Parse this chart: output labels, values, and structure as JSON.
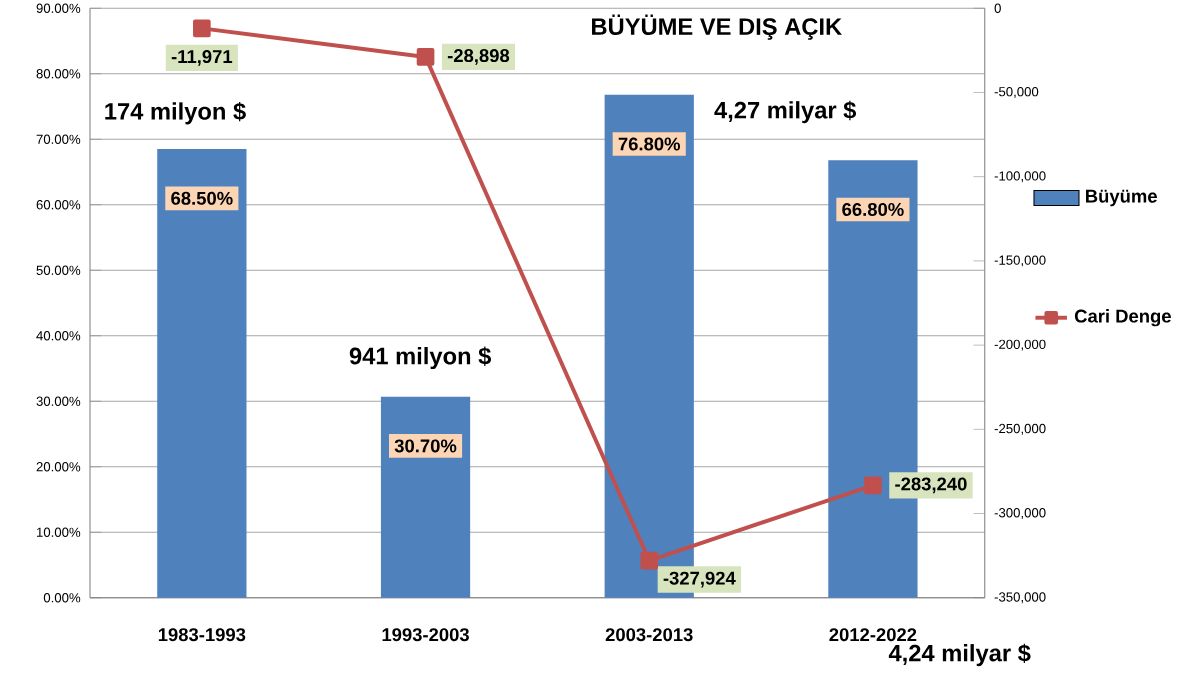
{
  "chart_data": {
    "type": "bar",
    "title": "BÜYÜME VE DIŞ AÇIK",
    "categories": [
      "1983-1993",
      "1993-2003",
      "2003-2013",
      "2012-2022"
    ],
    "series": [
      {
        "name": "Büyüme",
        "color": "#4f81bd",
        "values": [
          68.5,
          30.7,
          76.8,
          66.8
        ],
        "value_labels": [
          "68.50%",
          "30.70%",
          "76.80%",
          "66.80%"
        ]
      },
      {
        "name": "Cari Denge",
        "type": "line",
        "axis": "y2",
        "color": "#c0504d",
        "marker": "square",
        "values": [
          -11971,
          -28898,
          -327924,
          -283240
        ],
        "value_labels": [
          "-11,971",
          "-28,898",
          "-327,924",
          "-283,240"
        ]
      }
    ],
    "ylim": [
      0,
      90
    ],
    "yticks": [
      {
        "value": 0,
        "label": "0.00%"
      },
      {
        "value": 10,
        "label": "10.00%"
      },
      {
        "value": 20,
        "label": "20.00%"
      },
      {
        "value": 30,
        "label": "30.00%"
      },
      {
        "value": 40,
        "label": "40.00%"
      },
      {
        "value": 50,
        "label": "50.00%"
      },
      {
        "value": 60,
        "label": "60.00%"
      },
      {
        "value": 70,
        "label": "70.00%"
      },
      {
        "value": 80,
        "label": "80.00%"
      },
      {
        "value": 90,
        "label": "90.00%"
      }
    ],
    "y2lim": [
      -350000,
      0
    ],
    "y2ticks": [
      0,
      {
        "value": -50000,
        "label": "-50,000"
      },
      {
        "value": -100000,
        "label": "-100,000"
      },
      {
        "value": -150000,
        "label": "-150,000"
      },
      {
        "value": -200000,
        "label": "-200,000"
      },
      {
        "value": -250000,
        "label": "-250,000"
      },
      {
        "value": -300000,
        "label": "-300,000"
      },
      {
        "value": -350000,
        "label": "-350,000"
      }
    ],
    "annotations": [
      "174 milyon $",
      "941 milyon $",
      "4,27 milyar $",
      "4,24 milyar $"
    ],
    "grid": "y",
    "legend": "right"
  }
}
